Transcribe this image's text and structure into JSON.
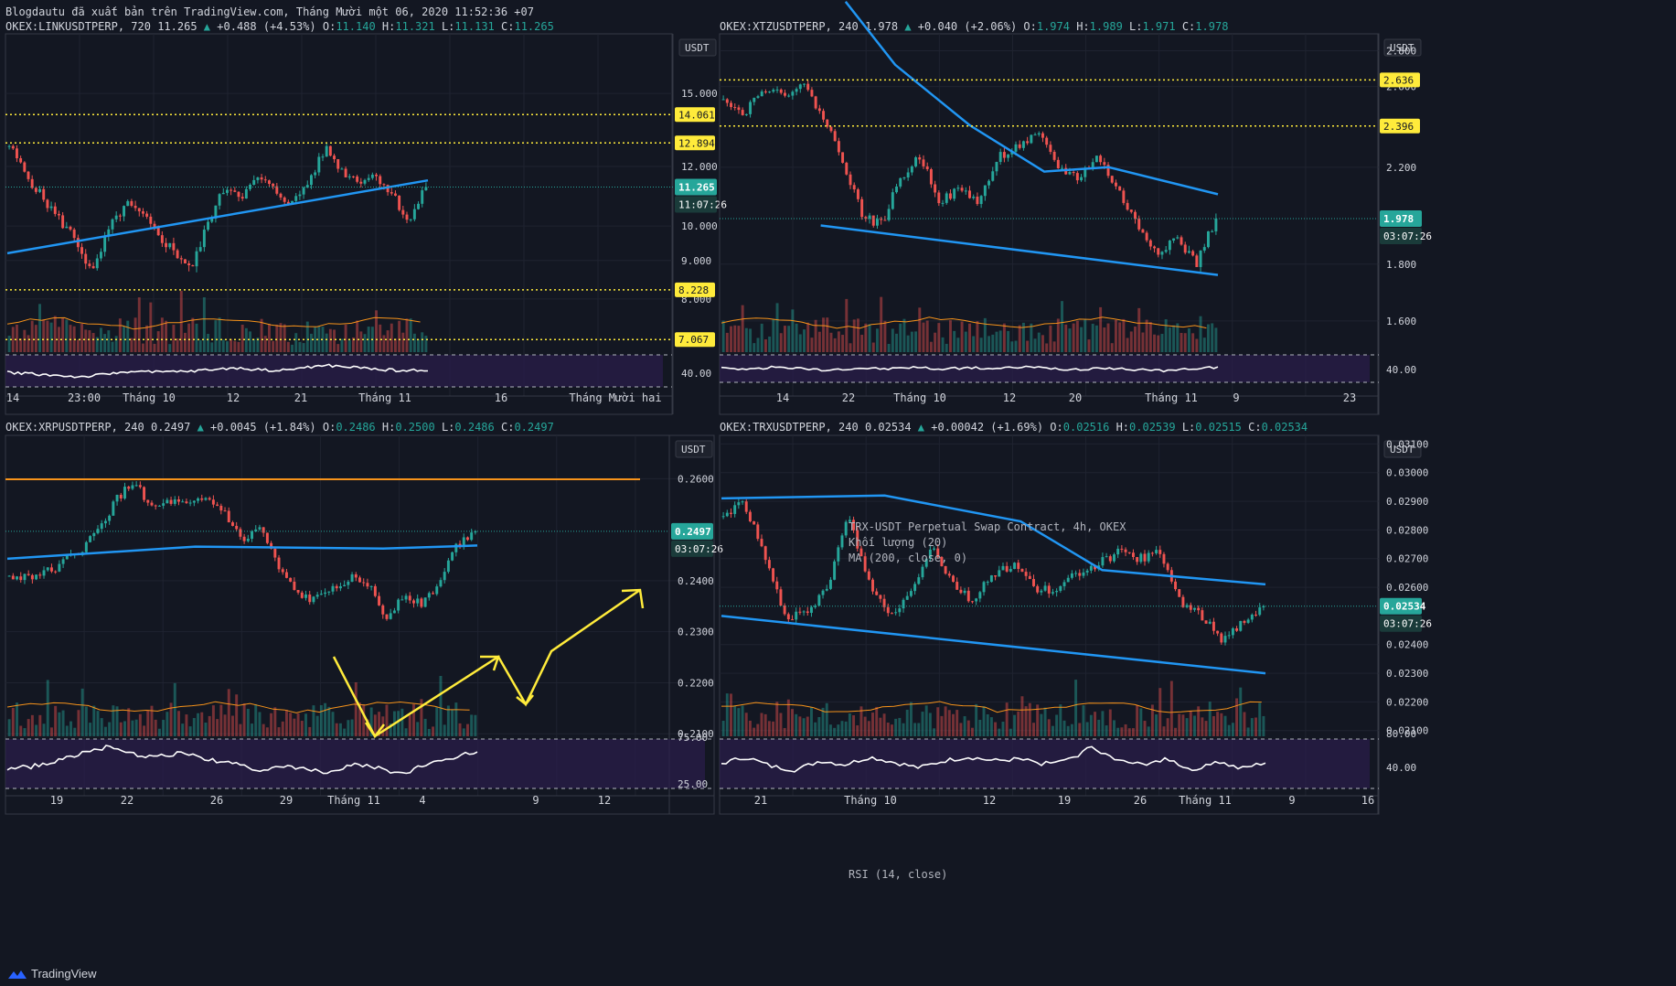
{
  "header": {
    "publish_line": "Blogdautu đã xuất bản trên TradingView.com, Tháng Mười một 06, 2020 11:52:36 +07"
  },
  "brand": {
    "name": "TradingView"
  },
  "colors": {
    "bg": "#131722",
    "up": "#26a69a",
    "down": "#ef5350",
    "ma": "#2196f3",
    "level": "#ffeb3b",
    "rsi": "#ffffff",
    "rsi_band": "#2a1e4a",
    "orange": "#f7931a",
    "arrow": "#ffeb3b"
  },
  "chart_data": [
    {
      "type": "candlestick",
      "symbol": "OKEX:LINKUSDTPERP",
      "interval": "720",
      "last": "11.265",
      "change": "+0.488 (+4.53%)",
      "ohlc": {
        "O": "11.140",
        "H": "11.321",
        "L": "11.131",
        "C": "11.265"
      },
      "currency": "USDT",
      "log_scale": true,
      "ylim": [
        6.8,
        18.0
      ],
      "price_ticks": [
        "15.000",
        "12.000",
        "10.000",
        "9.000",
        "8.000"
      ],
      "levels": [
        {
          "label": "14.061",
          "value": 14.061
        },
        {
          "label": "12.894",
          "value": 12.894
        },
        {
          "label": "8.228",
          "value": 8.228
        },
        {
          "label": "7.067",
          "value": 7.067
        }
      ],
      "last_label": "11.265",
      "countdown": "11:07:26",
      "rsi_tick": "40.00",
      "x_ticks": [
        "14",
        "23:00",
        "Tháng 10",
        "12",
        "21",
        "Tháng 11",
        "16",
        "Tháng Mười hai"
      ],
      "key_closes": [
        12.8,
        11.7,
        10.9,
        10.2,
        9.6,
        8.6,
        9.9,
        10.7,
        10.3,
        9.7,
        9.2,
        8.8,
        10.2,
        11.3,
        11.0,
        11.6,
        11.1,
        10.7,
        11.5,
        12.7,
        11.8,
        11.5,
        11.7,
        11.0,
        10.1,
        11.265
      ],
      "ma_line": [
        [
          0,
          9.2
        ],
        [
          1,
          11.5
        ]
      ],
      "rsi": [
        46,
        42,
        37,
        33,
        40,
        50,
        46,
        48,
        52,
        58,
        55,
        50,
        60,
        65,
        60,
        55,
        50,
        54
      ]
    },
    {
      "type": "candlestick",
      "symbol": "OKEX:XTZUSDTPERP",
      "interval": "240",
      "last": "1.978",
      "change": "+0.040 (+2.06%)",
      "ohlc": {
        "O": "1.974",
        "H": "1.989",
        "L": "1.971",
        "C": "1.978"
      },
      "currency": "USDT",
      "log_scale": true,
      "ylim": [
        1.5,
        2.9
      ],
      "price_ticks": [
        "2.800",
        "2.600",
        "2.200",
        "1.800",
        "1.600"
      ],
      "levels": [
        {
          "label": "2.636",
          "value": 2.636
        },
        {
          "label": "2.396",
          "value": 2.396
        }
      ],
      "last_label": "1.978",
      "countdown": "03:07:26",
      "rsi_tick": "40.00",
      "x_ticks": [
        "14",
        "22",
        "Tháng 10",
        "12",
        "20",
        "Tháng 11",
        "9",
        "23"
      ],
      "key_closes": [
        2.55,
        2.45,
        2.6,
        2.55,
        2.62,
        2.45,
        2.25,
        2.0,
        1.95,
        2.15,
        2.25,
        2.05,
        2.1,
        2.05,
        2.25,
        2.3,
        2.35,
        2.2,
        2.15,
        2.25,
        2.1,
        1.95,
        1.85,
        1.9,
        1.8,
        1.978
      ],
      "ma_line": [
        [
          0.25,
          3.1
        ],
        [
          0.35,
          2.72
        ],
        [
          0.5,
          2.4
        ],
        [
          0.65,
          2.18
        ],
        [
          0.78,
          2.2
        ],
        [
          1.0,
          2.08
        ]
      ],
      "support_line": [
        [
          0.2,
          1.95
        ],
        [
          1.0,
          1.76
        ]
      ],
      "rsi": [
        52,
        47,
        55,
        50,
        43,
        52,
        49,
        55,
        48,
        53,
        50,
        56,
        51,
        45,
        52,
        47,
        42,
        50,
        55
      ]
    },
    {
      "type": "candlestick",
      "symbol": "OKEX:XRPUSDTPERP",
      "interval": "240",
      "last": "0.2497",
      "change": "+0.0045 (+1.84%)",
      "ohlc": {
        "O": "0.2486",
        "H": "0.2500",
        "L": "0.2486",
        "C": "0.2497"
      },
      "currency": "USDT",
      "log_scale": false,
      "ylim": [
        0.2095,
        0.2685
      ],
      "price_ticks": [
        "0.2600",
        "0.2400",
        "0.2300",
        "0.2200",
        "0.2100"
      ],
      "levels": [
        {
          "label": "0.2600",
          "value": 0.2599
        }
      ],
      "last_label": "0.2497",
      "countdown": "03:07:26",
      "rsi_ticks": [
        "75.00",
        "25.00"
      ],
      "x_ticks": [
        "19",
        "22",
        "26",
        "29",
        "Tháng 11",
        "4",
        "9",
        "12"
      ],
      "key_closes": [
        0.2405,
        0.241,
        0.2415,
        0.2435,
        0.246,
        0.25,
        0.256,
        0.2595,
        0.254,
        0.2555,
        0.2545,
        0.256,
        0.2535,
        0.2475,
        0.2505,
        0.2425,
        0.2375,
        0.236,
        0.239,
        0.2405,
        0.2395,
        0.2325,
        0.2375,
        0.2355,
        0.2395,
        0.2475,
        0.2497
      ],
      "ma_line": [
        [
          0,
          0.2443
        ],
        [
          0.4,
          0.2467
        ],
        [
          0.8,
          0.2463
        ],
        [
          1.0,
          0.2469
        ]
      ],
      "rsi": [
        40,
        45,
        55,
        70,
        80,
        68,
        62,
        70,
        58,
        52,
        38,
        45,
        40,
        35,
        48,
        42,
        30,
        50,
        62,
        72
      ]
    },
    {
      "type": "candlestick",
      "symbol": "OKEX:TRXUSDTPERP",
      "interval": "240",
      "last": "0.02534",
      "change": "+0.00042 (+1.69%)",
      "ohlc": {
        "O": "0.02516",
        "H": "0.02539",
        "L": "0.02515",
        "C": "0.02534"
      },
      "currency": "USDT",
      "log_scale": false,
      "ylim": [
        0.0208,
        0.0313
      ],
      "price_ticks": [
        "0.03100",
        "0.03000",
        "0.02900",
        "0.02800",
        "0.02700",
        "0.02600",
        "0.02400",
        "0.02300",
        "0.02200",
        "0.02100"
      ],
      "last_label": "0.02534",
      "countdown": "03:07:26",
      "rsi_ticks": [
        "80.00",
        "40.00"
      ],
      "x_ticks": [
        "21",
        "Tháng 10",
        "12",
        "19",
        "26",
        "Tháng 11",
        "9",
        "16"
      ],
      "key_closes": [
        0.0285,
        0.029,
        0.027,
        0.025,
        0.025,
        0.026,
        0.0285,
        0.0262,
        0.025,
        0.0258,
        0.0275,
        0.0262,
        0.0255,
        0.0265,
        0.0268,
        0.026,
        0.0258,
        0.0265,
        0.0268,
        0.0272,
        0.027,
        0.0272,
        0.0255,
        0.025,
        0.0242,
        0.0248,
        0.02534
      ],
      "ma_line": [
        [
          0,
          0.0291
        ],
        [
          0.3,
          0.0292
        ],
        [
          0.55,
          0.0283
        ],
        [
          0.7,
          0.0266
        ],
        [
          1.0,
          0.0261
        ]
      ],
      "support_line": [
        [
          0,
          0.025
        ],
        [
          1.0,
          0.023
        ]
      ],
      "rsi": [
        50,
        62,
        45,
        38,
        55,
        48,
        62,
        52,
        42,
        55,
        62,
        55,
        58,
        50,
        55,
        82,
        55,
        48,
        60,
        38,
        55,
        40,
        52
      ]
    }
  ],
  "legend_trx": {
    "line1": "TRX-USDT Perpetual Swap Contract, 4h, OKEX",
    "line2": "Khối lượng (20)",
    "line3": "MA (200, close, 0)",
    "rsi": "RSI (14, close)"
  }
}
